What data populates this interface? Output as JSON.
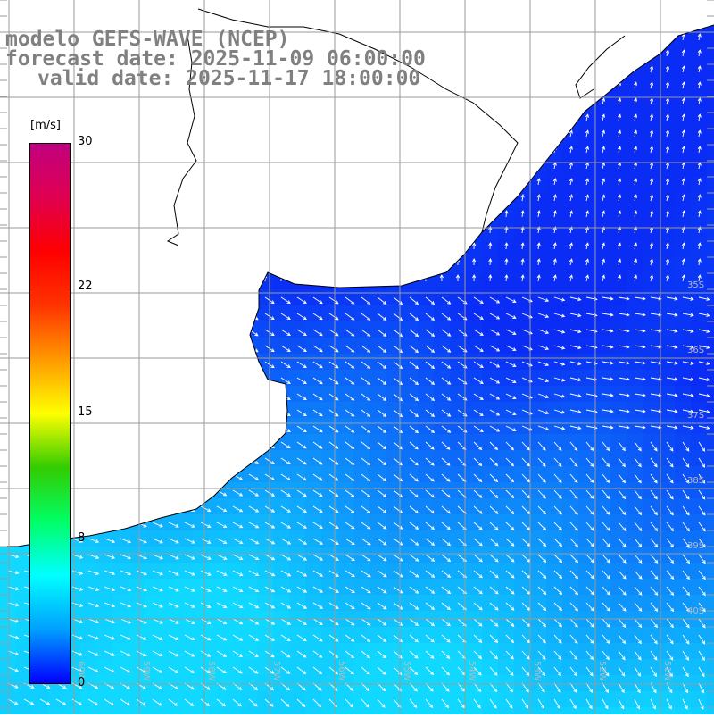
{
  "header": {
    "model": "modelo GEFS-WAVE (NCEP)",
    "forecast": "forecast date: 2025-11-09 06:00:00",
    "valid": "valid date: 2025-11-17 18:00:00"
  },
  "colorbar": {
    "unit": "[m/s]",
    "min": 0,
    "max": 30,
    "labels": [
      "30",
      "22",
      "15",
      "8",
      "0"
    ],
    "label_values": [
      30,
      22,
      15,
      8,
      0
    ],
    "colors": [
      "#0000ff",
      "#00a0ff",
      "#00ffff",
      "#00ff66",
      "#33cc00",
      "#ffff00",
      "#ff9900",
      "#ff3300",
      "#ff0000",
      "#e00050",
      "#c0007f"
    ]
  },
  "lat_labels": [
    "35S",
    "36S",
    "37S",
    "38S",
    "39S",
    "40S"
  ],
  "lon_labels": [
    "60W",
    "59W",
    "58W",
    "57W",
    "56W",
    "55W",
    "54W",
    "53W",
    "52W",
    "51W"
  ],
  "colors": {
    "land": "#ffffff",
    "ocean_deep": "#0a2cf5",
    "ocean_light": "#10d8ff",
    "grid": "#9a9a9a",
    "arrow": "#ffffff",
    "coast": "#000000"
  }
}
